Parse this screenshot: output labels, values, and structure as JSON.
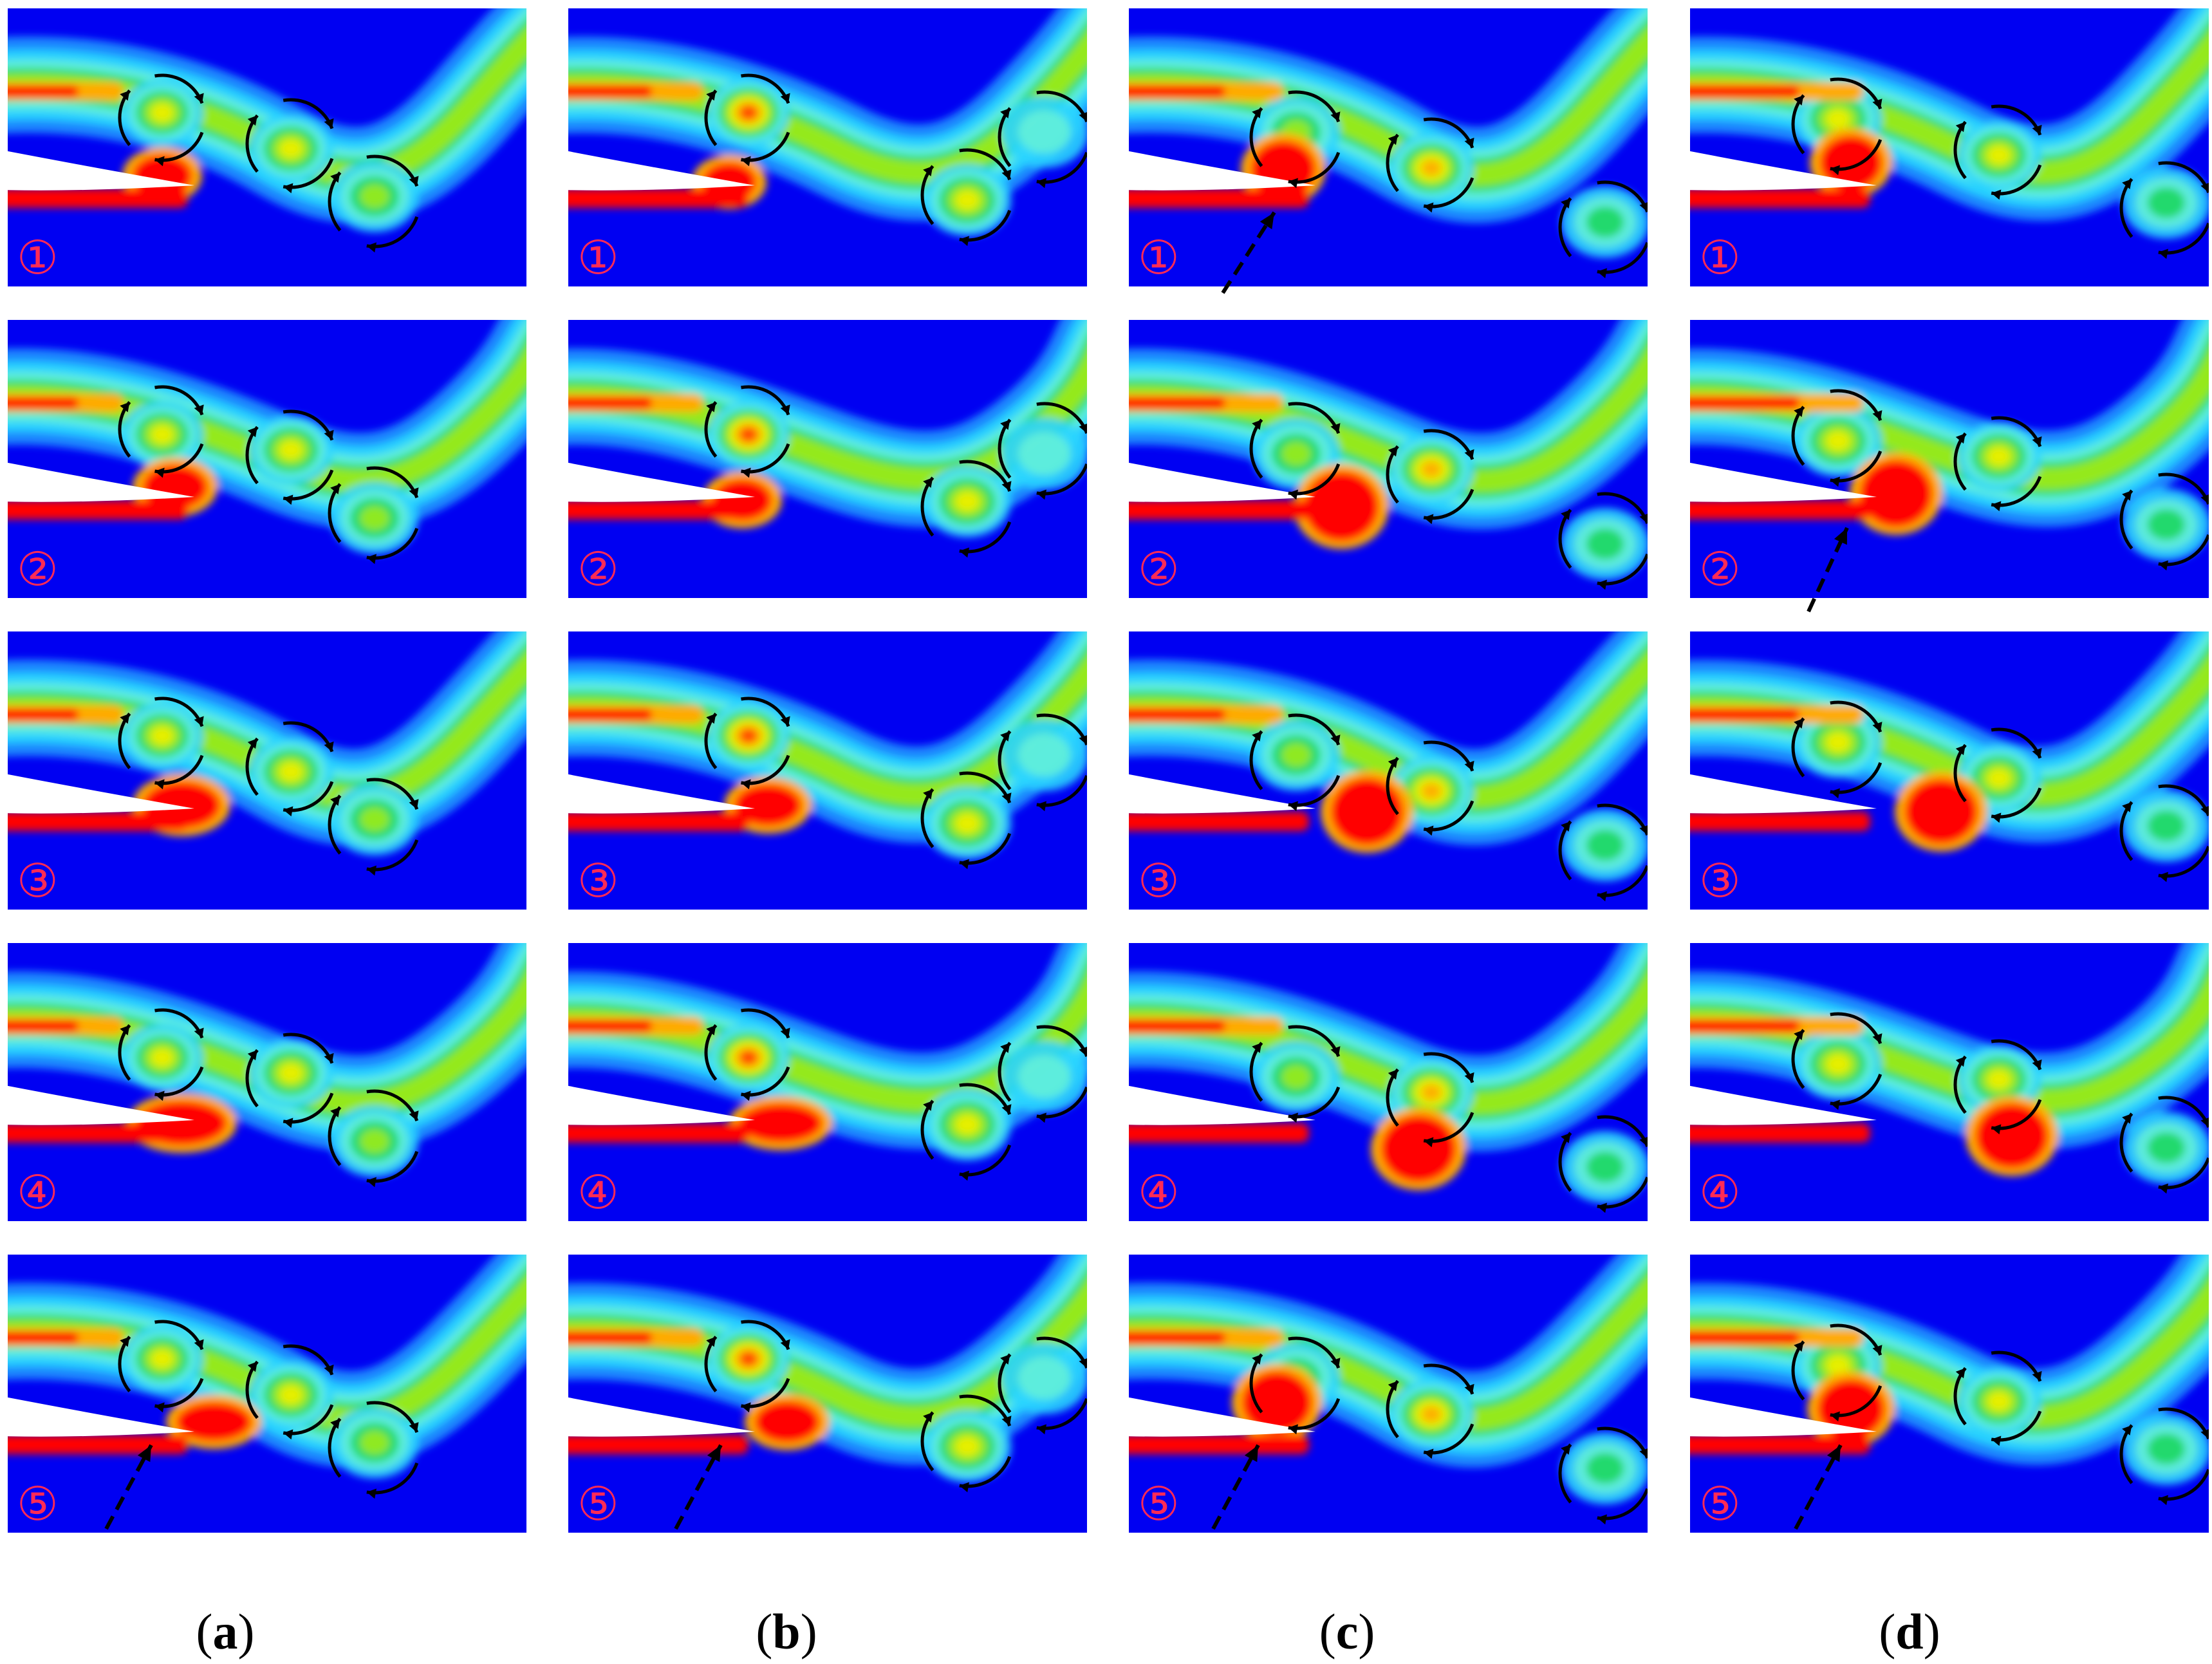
{
  "figure": {
    "columns": [
      {
        "label_open": "(",
        "letter": "a",
        "label_close": ")"
      },
      {
        "label_open": "(",
        "letter": "b",
        "label_close": ")"
      },
      {
        "label_open": "(",
        "letter": "c",
        "label_close": ")"
      },
      {
        "label_open": "(",
        "letter": "d",
        "label_close": ")"
      }
    ],
    "row_labels": [
      "①",
      "②",
      "③",
      "④",
      "⑤"
    ],
    "colors": {
      "background": "#0000f2",
      "label": "#ff2a55",
      "arrow": "#000000",
      "body": "#ffffff",
      "scale": [
        "#0000f2",
        "#1a8cff",
        "#29d4ff",
        "#63f0d9",
        "#1ed760",
        "#9bea18",
        "#f0f000",
        "#ffaa00",
        "#ff3300",
        "#ff0000"
      ]
    },
    "icons": [
      "curved-arrow-icon",
      "dashed-arrow-icon"
    ]
  }
}
